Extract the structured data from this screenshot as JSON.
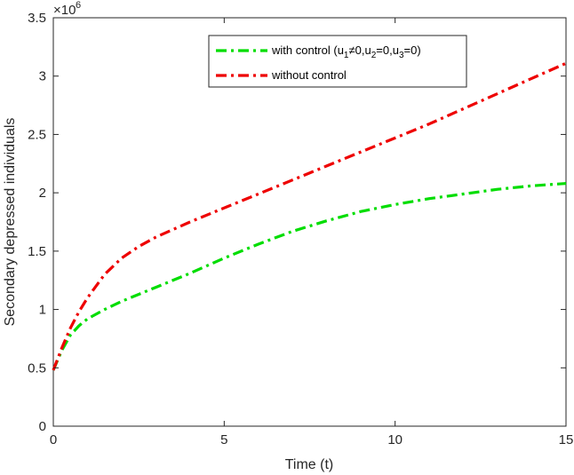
{
  "chart_data": {
    "type": "line",
    "xlabel": "Time (t)",
    "ylabel": "Secondary depressed individuals",
    "y_exponent_label": "×10",
    "y_exponent": "6",
    "xlim": [
      0,
      15
    ],
    "ylim": [
      0,
      3.5
    ],
    "xticks": [
      0,
      5,
      10,
      15
    ],
    "xtick_labels": [
      "0",
      "5",
      "10",
      "15"
    ],
    "yticks": [
      0,
      0.5,
      1,
      1.5,
      2,
      2.5,
      3,
      3.5
    ],
    "ytick_labels": [
      "0",
      "0.5",
      "1",
      "1.5",
      "2",
      "2.5",
      "3",
      "3.5"
    ],
    "y_scale_factor": 1000000,
    "grid": false,
    "legend_position": "top-right",
    "series": [
      {
        "legend_parts": [
          "with control (u",
          "1",
          "≠0,u",
          "2",
          "=0,u",
          "3",
          "=0)"
        ],
        "color": "#00dd00",
        "line_style": "dash-dot",
        "x": [
          0,
          0.25,
          0.5,
          0.75,
          1,
          1.5,
          2,
          3,
          4,
          5,
          6,
          7,
          8,
          9,
          10,
          11,
          12,
          13,
          14,
          15
        ],
        "y": [
          0.48,
          0.65,
          0.78,
          0.86,
          0.92,
          1.0,
          1.07,
          1.19,
          1.31,
          1.44,
          1.56,
          1.67,
          1.76,
          1.84,
          1.9,
          1.95,
          1.99,
          2.03,
          2.06,
          2.08
        ]
      },
      {
        "legend_parts": [
          "without control"
        ],
        "color": "#ee0000",
        "line_style": "dash-dot",
        "x": [
          0,
          0.25,
          0.5,
          0.75,
          1,
          1.5,
          2,
          2.5,
          3,
          4,
          5,
          6,
          7,
          8,
          9,
          10,
          11,
          12,
          13,
          14,
          15
        ],
        "y": [
          0.48,
          0.67,
          0.84,
          0.98,
          1.1,
          1.3,
          1.44,
          1.54,
          1.62,
          1.75,
          1.87,
          1.99,
          2.11,
          2.23,
          2.35,
          2.47,
          2.59,
          2.72,
          2.85,
          2.98,
          3.11
        ]
      }
    ]
  }
}
